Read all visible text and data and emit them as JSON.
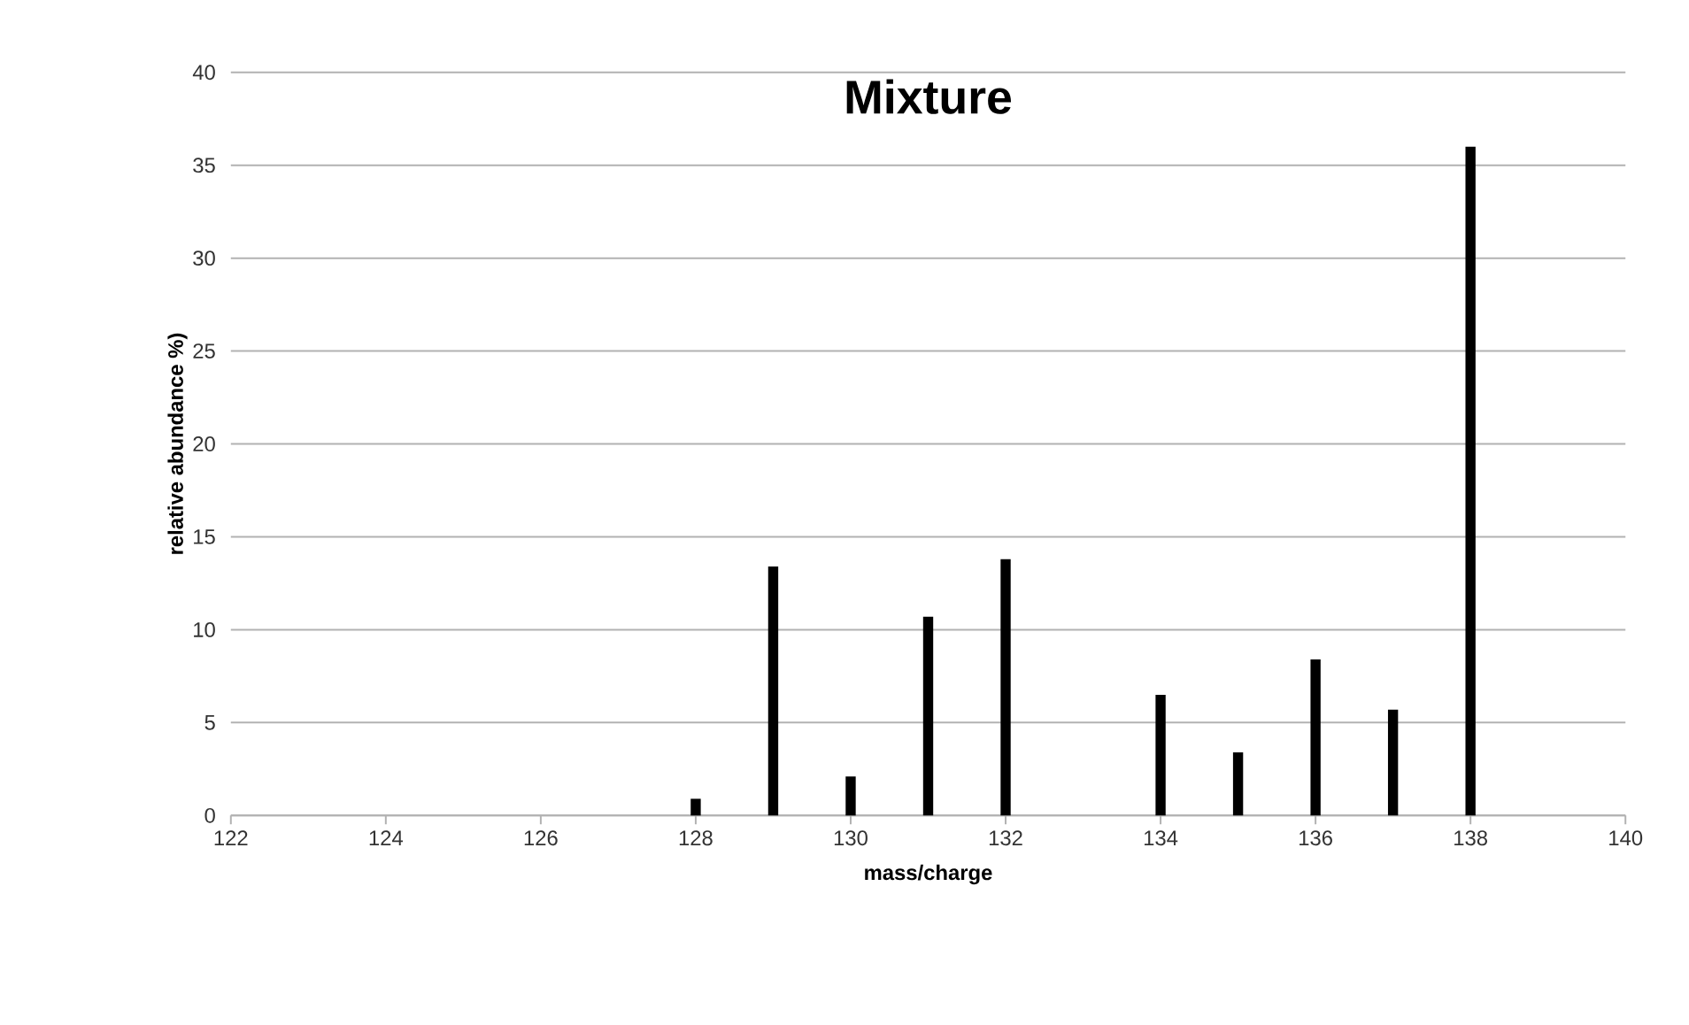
{
  "chart_data": {
    "type": "bar",
    "title": "Mixture",
    "xlabel": "mass/charge",
    "ylabel": "relative abundance  %)",
    "x": [
      128,
      129,
      130,
      131,
      132,
      134,
      135,
      136,
      137,
      138
    ],
    "values": [
      0.9,
      13.4,
      2.1,
      10.7,
      13.8,
      6.5,
      3.4,
      8.4,
      5.7,
      36.0
    ],
    "color": "#000000",
    "xlim": [
      122,
      140
    ],
    "xticks": [
      122,
      124,
      126,
      128,
      130,
      132,
      134,
      136,
      138,
      140
    ],
    "ylim": [
      0,
      40
    ],
    "yticks": [
      0,
      5,
      10,
      15,
      20,
      25,
      30,
      35,
      40
    ],
    "grid": "y"
  }
}
